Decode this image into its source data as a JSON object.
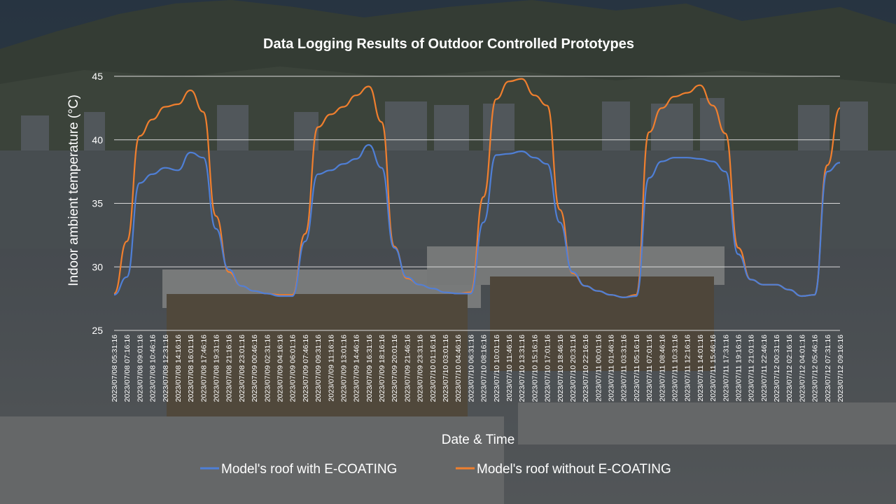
{
  "chart_data": {
    "type": "line",
    "title": "Data Logging Results of Outdoor Controlled Prototypes",
    "xlabel": "Date & Time",
    "ylabel": "Indoor ambient temperature (°C)",
    "ylim": [
      25,
      45
    ],
    "yticks": [
      "25",
      "30",
      "35",
      "40",
      "45"
    ],
    "grid": true,
    "legend_position": "bottom",
    "x": [
      "2023/07/08 05:31:16",
      "2023/07/08 07:16:16",
      "2023/07/08 09:01:16",
      "2023/07/08 10:46:16",
      "2023/07/08 12:31:16",
      "2023/07/08 14:16:16",
      "2023/07/08 16:01:16",
      "2023/07/08 17:46:16",
      "2023/07/08 19:31:16",
      "2023/07/08 21:16:16",
      "2023/07/08 23:01:16",
      "2023/07/09 00:46:16",
      "2023/07/09 02:31:16",
      "2023/07/09 04:16:16",
      "2023/07/09 06:01:16",
      "2023/07/09 07:46:16",
      "2023/07/09 09:31:16",
      "2023/07/09 11:16:16",
      "2023/07/09 13:01:16",
      "2023/07/09 14:46:16",
      "2023/07/09 16:31:16",
      "2023/07/09 18:16:16",
      "2023/07/09 20:01:16",
      "2023/07/09 21:46:16",
      "2023/07/09 23:31:16",
      "2023/07/10 01:16:16",
      "2023/07/10 03:01:16",
      "2023/07/10 04:46:16",
      "2023/07/10 06:31:16",
      "2023/07/10 08:16:16",
      "2023/07/10 10:01:16",
      "2023/07/10 11:46:16",
      "2023/07/10 13:31:16",
      "2023/07/10 15:16:16",
      "2023/07/10 17:01:16",
      "2023/07/10 18:46:16",
      "2023/07/10 20:31:16",
      "2023/07/10 22:16:16",
      "2023/07/11 00:01:16",
      "2023/07/11 01:46:16",
      "2023/07/11 03:31:16",
      "2023/07/11 05:16:16",
      "2023/07/11 07:01:16",
      "2023/07/11 08:46:16",
      "2023/07/11 10:31:16",
      "2023/07/11 12:16:16",
      "2023/07/11 14:01:16",
      "2023/07/11 15:46:16",
      "2023/07/11 17:31:16",
      "2023/07/11 19:16:16",
      "2023/07/11 21:01:16",
      "2023/07/11 22:46:16",
      "2023/07/12 00:31:16",
      "2023/07/12 02:16:16",
      "2023/07/12 04:01:16",
      "2023/07/12 05:46:16",
      "2023/07/12 07:31:16",
      "2023/07/12 09:16:16"
    ],
    "series": [
      {
        "name": "Model's roof with E-COATING",
        "color": "#4f7fd6",
        "values": [
          27.8,
          29.2,
          36.6,
          37.3,
          37.8,
          37.6,
          39.0,
          38.6,
          33.0,
          29.8,
          28.5,
          28.1,
          27.9,
          27.7,
          27.7,
          32.0,
          37.3,
          37.6,
          38.1,
          38.5,
          39.6,
          37.8,
          31.5,
          29.2,
          28.6,
          28.3,
          28.0,
          27.9,
          27.9,
          33.5,
          38.8,
          38.9,
          39.1,
          38.6,
          38.1,
          33.5,
          29.6,
          28.5,
          28.1,
          27.8,
          27.6,
          27.7,
          37.0,
          38.3,
          38.6,
          38.6,
          38.5,
          38.3,
          37.5,
          31.0,
          29.0,
          28.6,
          28.6,
          28.2,
          27.7,
          27.8,
          37.5,
          38.2
        ]
      },
      {
        "name": "Model's roof without E-COATING",
        "color": "#f07f2e",
        "values": [
          27.9,
          32.0,
          40.3,
          41.6,
          42.6,
          42.8,
          43.9,
          42.2,
          34.0,
          29.6,
          28.5,
          28.1,
          27.9,
          27.8,
          27.8,
          32.6,
          41.0,
          42.0,
          42.6,
          43.5,
          44.2,
          41.4,
          31.6,
          29.1,
          28.6,
          28.3,
          28.0,
          27.9,
          28.0,
          35.5,
          43.2,
          44.6,
          44.8,
          43.5,
          42.7,
          34.5,
          29.5,
          28.5,
          28.1,
          27.8,
          27.6,
          27.8,
          40.6,
          42.5,
          43.4,
          43.7,
          44.3,
          42.7,
          40.5,
          31.5,
          29.0,
          28.6,
          28.6,
          28.2,
          27.7,
          27.8,
          38.0,
          42.5
        ]
      }
    ]
  }
}
